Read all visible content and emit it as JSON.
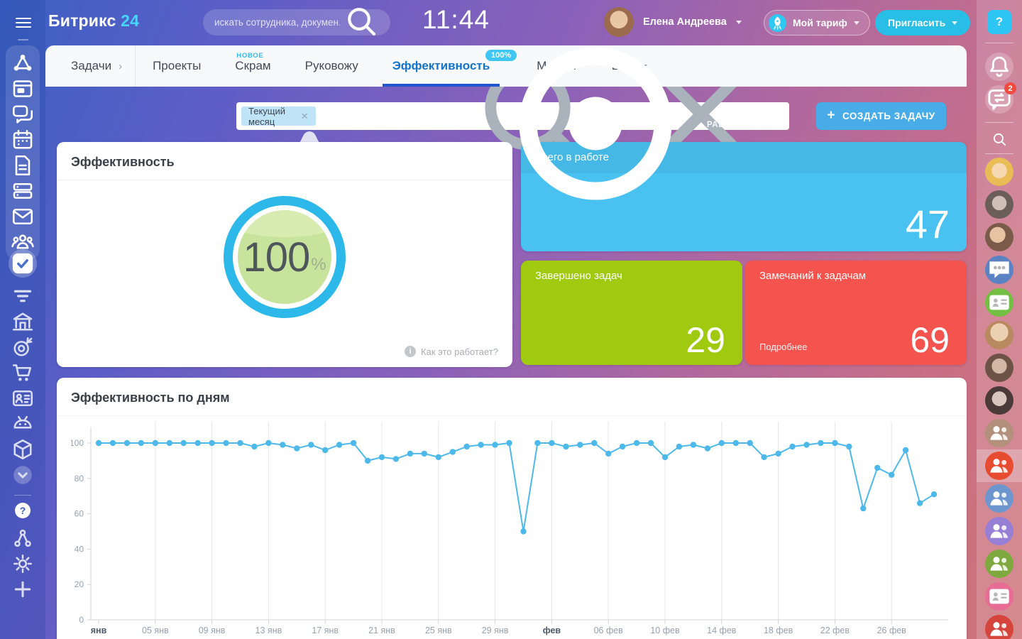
{
  "topbar": {
    "logo": "Битрикс",
    "logo_accent": "24",
    "search_placeholder": "искать сотрудника, докумен...",
    "time": "11:44",
    "status": "РАБОТАЮ",
    "user_name": "Елена Андреева",
    "tariff_label": "Мой тариф",
    "invite_label": "Пригласить"
  },
  "nav": {
    "tabs": [
      {
        "label": "Задачи"
      },
      {
        "label": "Проекты"
      },
      {
        "label": "Скрам",
        "badge": "НОВОЕ"
      },
      {
        "label": "Руковожу"
      },
      {
        "label": "Эффективность",
        "badge": "100%",
        "active": true
      },
      {
        "label": "Маркет"
      },
      {
        "label": "Еще"
      }
    ]
  },
  "header": {
    "title": "Эффективность",
    "filter_chip": "Текущий месяц",
    "create_button": "СОЗДАТЬ ЗАДАЧУ"
  },
  "widgets": {
    "efficiency": {
      "title": "Эффективность",
      "value": "100",
      "unit": "%",
      "help_link": "Как это работает?"
    },
    "in_progress": {
      "title": "Всего в работе",
      "value": "47"
    },
    "completed": {
      "title": "Завершено задач",
      "value": "29"
    },
    "remarks": {
      "title": "Замечаний к задачам",
      "value": "69",
      "link": "Подробнее"
    }
  },
  "chart_card": {
    "title": "Эффективность по дням"
  },
  "chart_data": {
    "type": "line",
    "title": "Эффективность по дням",
    "x_unit": "days (Jan 1 – Feb 29)",
    "x_tick_days": [
      1,
      5,
      9,
      13,
      17,
      21,
      25,
      29,
      33,
      37,
      41,
      45,
      49,
      53,
      57
    ],
    "x_tick_labels": [
      "янв",
      "05 янв",
      "09 янв",
      "13 янв",
      "17 янв",
      "21 янв",
      "25 янв",
      "29 янв",
      "фев",
      "06 фев",
      "10 фев",
      "14 фев",
      "18 фев",
      "22 фев",
      "26 фев"
    ],
    "y_ticks": [
      0,
      20,
      40,
      60,
      80,
      100
    ],
    "ylim": [
      0,
      100
    ],
    "grid": "vertical",
    "line_color": "#4db8ea",
    "values": [
      100,
      100,
      100,
      100,
      100,
      100,
      100,
      100,
      100,
      100,
      100,
      98,
      100,
      99,
      97,
      99,
      96,
      99,
      100,
      90,
      92,
      91,
      94,
      94,
      92,
      95,
      98,
      99,
      99,
      100,
      50,
      100,
      100,
      98,
      99,
      100,
      94,
      98,
      100,
      100,
      92,
      98,
      99,
      97,
      100,
      100,
      100,
      92,
      94,
      98,
      99,
      100,
      100,
      98,
      63,
      86,
      82,
      96,
      66,
      71
    ]
  },
  "left_rail": {
    "icons": [
      "menu-icon",
      "pulse-icon",
      "board-icon",
      "chat-icon",
      "calendar-icon",
      "document-icon",
      "drive-icon",
      "mail-icon",
      "people-icon",
      "tasks-check-icon",
      "funnel-icon",
      "bank-icon",
      "target-icon",
      "cart-icon",
      "idcard-icon",
      "robot-icon",
      "cube-icon",
      "chevron-circle-icon",
      "help-icon",
      "share-icon",
      "gear-icon",
      "plus-icon"
    ]
  },
  "right_rail": {
    "help_label": "?",
    "messenger_badge": "2",
    "icons": [
      "help-icon",
      "bell-icon",
      "messenger-icon",
      "search-icon"
    ],
    "avatars": [
      "avatar-photo",
      "avatar-photo",
      "avatar-photo",
      "group-chat-blue",
      "contacts-green",
      "avatar-photo",
      "avatar-photo",
      "avatar-photo",
      "group-tan",
      "group-orange-selected",
      "group-blue",
      "group-purple",
      "group-olive",
      "contacts-pink",
      "group-red"
    ]
  },
  "colors": {
    "accent_blue": "#2057d0",
    "active_tab": "#1273cd",
    "cyan_button": "#29bee6",
    "create_button": "#47ace8",
    "card_blue": "#49c1f1",
    "card_green": "#9fca10",
    "card_red": "#f4534e",
    "gauge_ring": "#2cb9ea",
    "gauge_fill": "#c8e49c",
    "chart_line": "#4db8ea"
  }
}
